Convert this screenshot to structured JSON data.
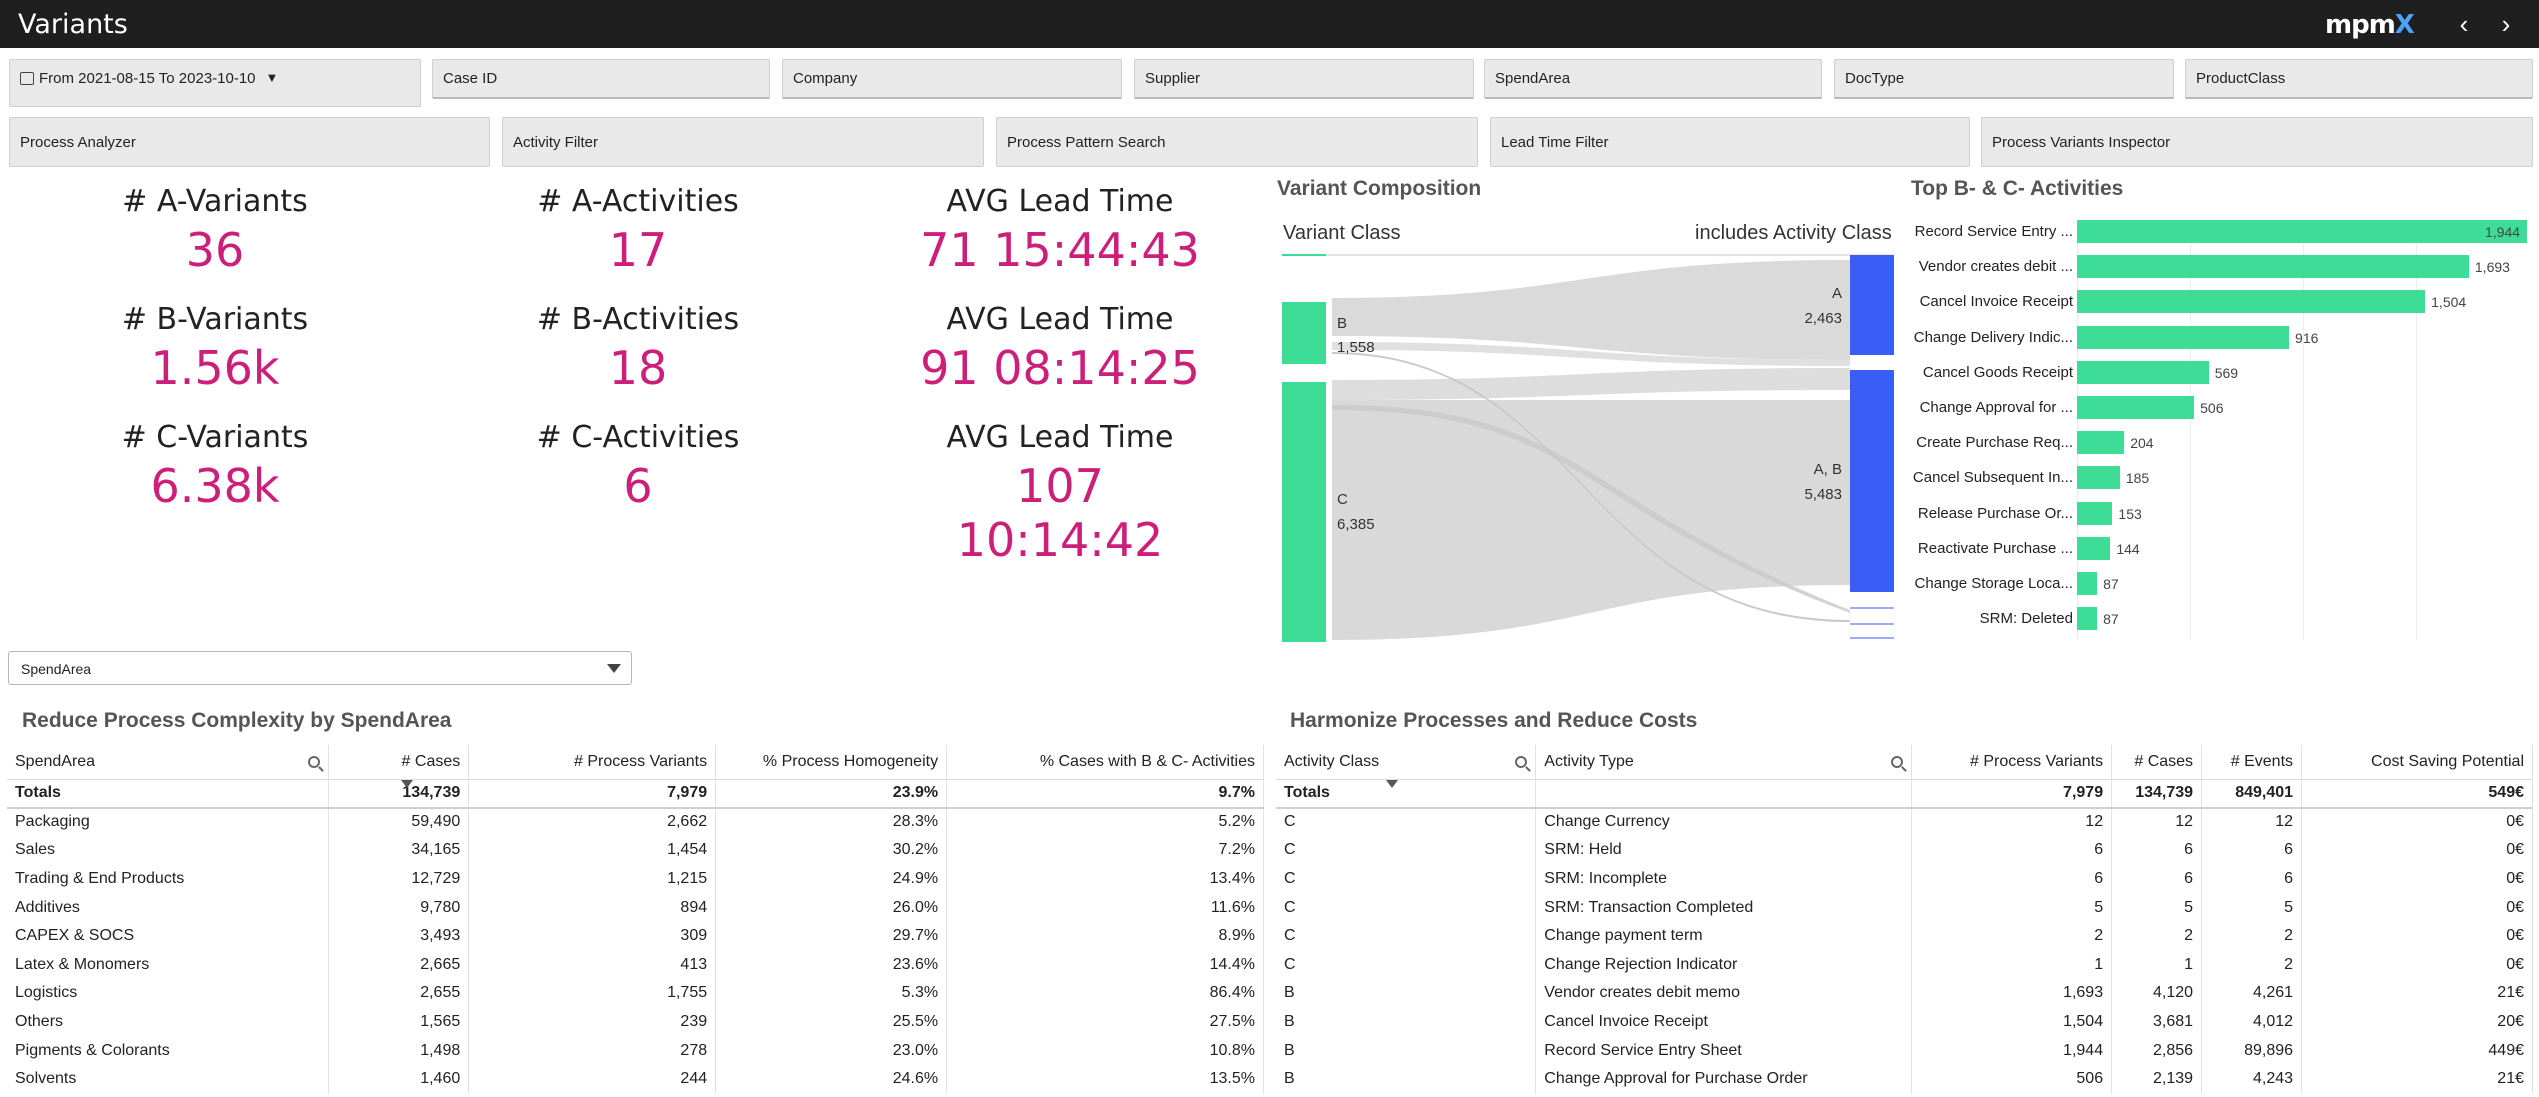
{
  "app": {
    "title": "Variants",
    "logo_main": "mpm",
    "logo_accent": "X"
  },
  "nav": {
    "back_icon": "chevron-left-icon",
    "forward_icon": "chevron-right-icon",
    "back": "‹",
    "forward": "›"
  },
  "filters_row1": {
    "date_range": "From 2021-08-15 To 2023-10-10",
    "fields": [
      "Case ID",
      "Company",
      "Supplier",
      "SpendArea",
      "DocType",
      "ProductClass"
    ]
  },
  "filters_row2": [
    "Process Analyzer",
    "Activity Filter",
    "Process Pattern Search",
    "Lead Time Filter",
    "Process Variants Inspector"
  ],
  "kpis": {
    "a_variants": {
      "label": "# A-Variants",
      "value": "36"
    },
    "b_variants": {
      "label": "# B-Variants",
      "value": "1.56k"
    },
    "c_variants": {
      "label": "# C-Variants",
      "value": "6.38k"
    },
    "a_activities": {
      "label": "# A-Activities",
      "value": "17"
    },
    "b_activities": {
      "label": "# B-Activities",
      "value": "18"
    },
    "c_activities": {
      "label": "# C-Activities",
      "value": "6"
    },
    "lead_a": {
      "label": "AVG Lead Time",
      "value": "71 15:44:43"
    },
    "lead_b": {
      "label": "AVG Lead Time",
      "value": "91 08:14:25"
    },
    "lead_c": {
      "label": "AVG Lead Time",
      "value": "107 10:14:42"
    }
  },
  "variant_composition": {
    "title": "Variant Composition",
    "left_header": "Variant Class",
    "right_header": "includes Activity Class",
    "left_nodes": [
      {
        "name": "B",
        "value": "1,558"
      },
      {
        "name": "C",
        "value": "6,385"
      }
    ],
    "right_nodes": [
      {
        "name": "A",
        "value": "2,463"
      },
      {
        "name": "A, B",
        "value": "5,483"
      }
    ],
    "colors": {
      "left": "#3ddc97",
      "right": "#3a5ef5",
      "link": "#cfcfcf"
    }
  },
  "top_activities": {
    "title": "Top B- & C- Activities",
    "max": 1944,
    "items": [
      {
        "label": "Record Service Entry ...",
        "value": 1944,
        "text": "1,944"
      },
      {
        "label": "Vendor creates debit ...",
        "value": 1693,
        "text": "1,693"
      },
      {
        "label": "Cancel Invoice Receipt",
        "value": 1504,
        "text": "1,504"
      },
      {
        "label": "Change Delivery Indic...",
        "value": 916,
        "text": "916"
      },
      {
        "label": "Cancel Goods Receipt",
        "value": 569,
        "text": "569"
      },
      {
        "label": "Change Approval for ...",
        "value": 506,
        "text": "506"
      },
      {
        "label": "Create Purchase Req...",
        "value": 204,
        "text": "204"
      },
      {
        "label": "Cancel Subsequent In...",
        "value": 185,
        "text": "185"
      },
      {
        "label": "Release Purchase Or...",
        "value": 153,
        "text": "153"
      },
      {
        "label": "Reactivate Purchase ...",
        "value": 144,
        "text": "144"
      },
      {
        "label": "Change Storage Loca...",
        "value": 87,
        "text": "87"
      },
      {
        "label": "SRM: Deleted",
        "value": 87,
        "text": "87"
      }
    ]
  },
  "spend_selector": {
    "value": "SpendArea"
  },
  "complexity_table": {
    "title": "Reduce Process Complexity by SpendArea",
    "headers": [
      "SpendArea",
      "# Cases",
      "# Process Variants",
      "% Process Homogeneity",
      "% Cases with B & C- Activities"
    ],
    "totals": [
      "Totals",
      "134,739",
      "7,979",
      "23.9%",
      "9.7%"
    ],
    "rows": [
      [
        "Packaging",
        "59,490",
        "2,662",
        "28.3%",
        "5.2%"
      ],
      [
        "Sales",
        "34,165",
        "1,454",
        "30.2%",
        "7.2%"
      ],
      [
        "Trading & End Products",
        "12,729",
        "1,215",
        "24.9%",
        "13.4%"
      ],
      [
        "Additives",
        "9,780",
        "894",
        "26.0%",
        "11.6%"
      ],
      [
        "CAPEX & SOCS",
        "3,493",
        "309",
        "29.7%",
        "8.9%"
      ],
      [
        "Latex & Monomers",
        "2,665",
        "413",
        "23.6%",
        "14.4%"
      ],
      [
        "Logistics",
        "2,655",
        "1,755",
        "5.3%",
        "86.4%"
      ],
      [
        "Others",
        "1,565",
        "239",
        "25.5%",
        "27.5%"
      ],
      [
        "Pigments & Colorants",
        "1,498",
        "278",
        "23.0%",
        "10.8%"
      ],
      [
        "Solvents",
        "1,460",
        "244",
        "24.6%",
        "13.5%"
      ]
    ]
  },
  "harmonize_table": {
    "title": "Harmonize Processes and Reduce Costs",
    "headers": [
      "Activity Class",
      "Activity Type",
      "# Process Variants",
      "# Cases",
      "# Events",
      "Cost Saving Potential"
    ],
    "totals": [
      "Totals",
      "",
      "7,979",
      "134,739",
      "849,401",
      "549€"
    ],
    "rows": [
      [
        "C",
        "Change Currency",
        "12",
        "12",
        "12",
        "0€"
      ],
      [
        "C",
        "SRM: Held",
        "6",
        "6",
        "6",
        "0€"
      ],
      [
        "C",
        "SRM: Incomplete",
        "6",
        "6",
        "6",
        "0€"
      ],
      [
        "C",
        "SRM: Transaction Completed",
        "5",
        "5",
        "5",
        "0€"
      ],
      [
        "C",
        "Change payment term",
        "2",
        "2",
        "2",
        "0€"
      ],
      [
        "C",
        "Change Rejection Indicator",
        "1",
        "1",
        "2",
        "0€"
      ],
      [
        "B",
        "Vendor creates debit memo",
        "1,693",
        "4,120",
        "4,261",
        "21€"
      ],
      [
        "B",
        "Cancel Invoice Receipt",
        "1,504",
        "3,681",
        "4,012",
        "20€"
      ],
      [
        "B",
        "Record Service Entry Sheet",
        "1,944",
        "2,856",
        "89,896",
        "449€"
      ],
      [
        "B",
        "Change Approval for Purchase Order",
        "506",
        "2,139",
        "4,243",
        "21€"
      ]
    ]
  }
}
